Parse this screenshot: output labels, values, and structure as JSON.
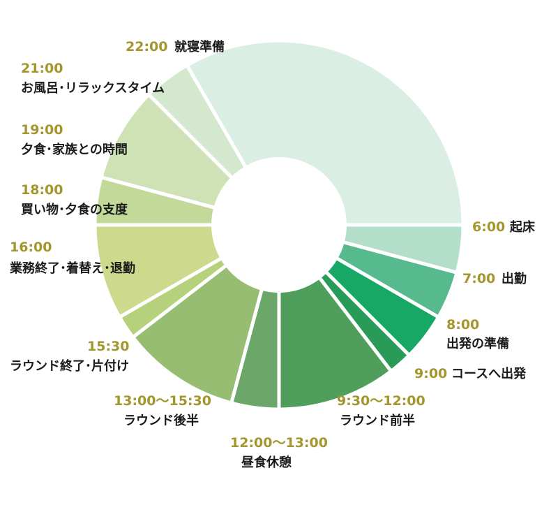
{
  "chart_data": {
    "type": "pie",
    "title": "",
    "hole": true,
    "slices": [
      {
        "time": "6:00",
        "name": "起床",
        "hours": 1.0,
        "color": "#b3dfca"
      },
      {
        "time": "7:00",
        "name": "出勤",
        "hours": 1.0,
        "color": "#57b98e"
      },
      {
        "time": "8:00",
        "name": "出発の準備",
        "hours": 1.0,
        "color": "#17a865"
      },
      {
        "time": "9:00",
        "name": "コースへ出発",
        "hours": 0.5,
        "color": "#2a9a58"
      },
      {
        "time": "9:30〜12:00",
        "name": "ラウンド前半",
        "hours": 2.5,
        "color": "#4f9e5c"
      },
      {
        "time": "12:00〜13:00",
        "name": "昼食休憩",
        "hours": 1.0,
        "color": "#6ca76a"
      },
      {
        "time": "13:00〜15:30",
        "name": "ラウンド後半",
        "hours": 2.5,
        "color": "#96bd71"
      },
      {
        "time": "15:30",
        "name": "ラウンド終了･片付け",
        "hours": 0.5,
        "color": "#b6d17b"
      },
      {
        "time": "16:00",
        "name": "業務終了･着替え･退勤",
        "hours": 2.0,
        "color": "#cdda8e"
      },
      {
        "time": "18:00",
        "name": "買い物･夕食の支度",
        "hours": 1.0,
        "color": "#c3d999"
      },
      {
        "time": "19:00",
        "name": "夕食･家族との時間",
        "hours": 2.0,
        "color": "#cfe2b6"
      },
      {
        "time": "21:00",
        "name": "お風呂･リラックスタイム",
        "hours": 1.0,
        "color": "#d4e8cd"
      },
      {
        "time": "22:00",
        "name": "就寝準備",
        "hours": 8.0,
        "color": "#daeee3"
      }
    ]
  }
}
